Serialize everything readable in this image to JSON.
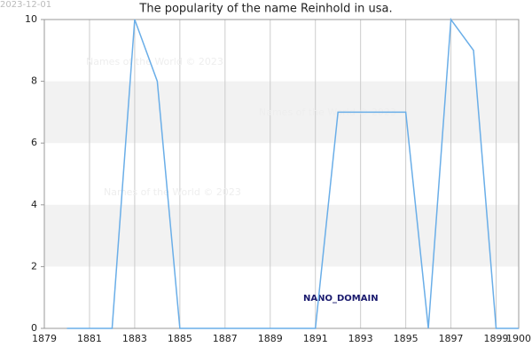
{
  "chart_data": {
    "type": "line",
    "title": "The popularity of the name Reinhold in usa.",
    "date_stamp": "2023-12-01",
    "watermarks": [
      "Names of the World © 2023",
      "Names of the World © 2023",
      "Names of the World © 2023"
    ],
    "domain_label": "NANO_DOMAIN",
    "x": [
      1880,
      1881,
      1882,
      1883,
      1884,
      1885,
      1886,
      1887,
      1888,
      1889,
      1890,
      1891,
      1892,
      1893,
      1894,
      1895,
      1896,
      1897,
      1898,
      1899,
      1900
    ],
    "series": [
      {
        "color": "#6aaee8",
        "values": [
          0,
          0,
          0,
          10,
          8,
          0,
          0,
          0,
          0,
          0,
          0,
          0,
          7,
          7,
          7,
          7,
          0,
          10,
          9,
          0,
          0
        ]
      }
    ],
    "xlim": [
      1879,
      1900
    ],
    "xticks": [
      1879,
      1881,
      1883,
      1885,
      1887,
      1889,
      1891,
      1893,
      1895,
      1897,
      1899,
      1900
    ],
    "ylim": [
      0,
      10
    ],
    "yticks": [
      0,
      2,
      4,
      6,
      8,
      10
    ],
    "grid": true
  }
}
